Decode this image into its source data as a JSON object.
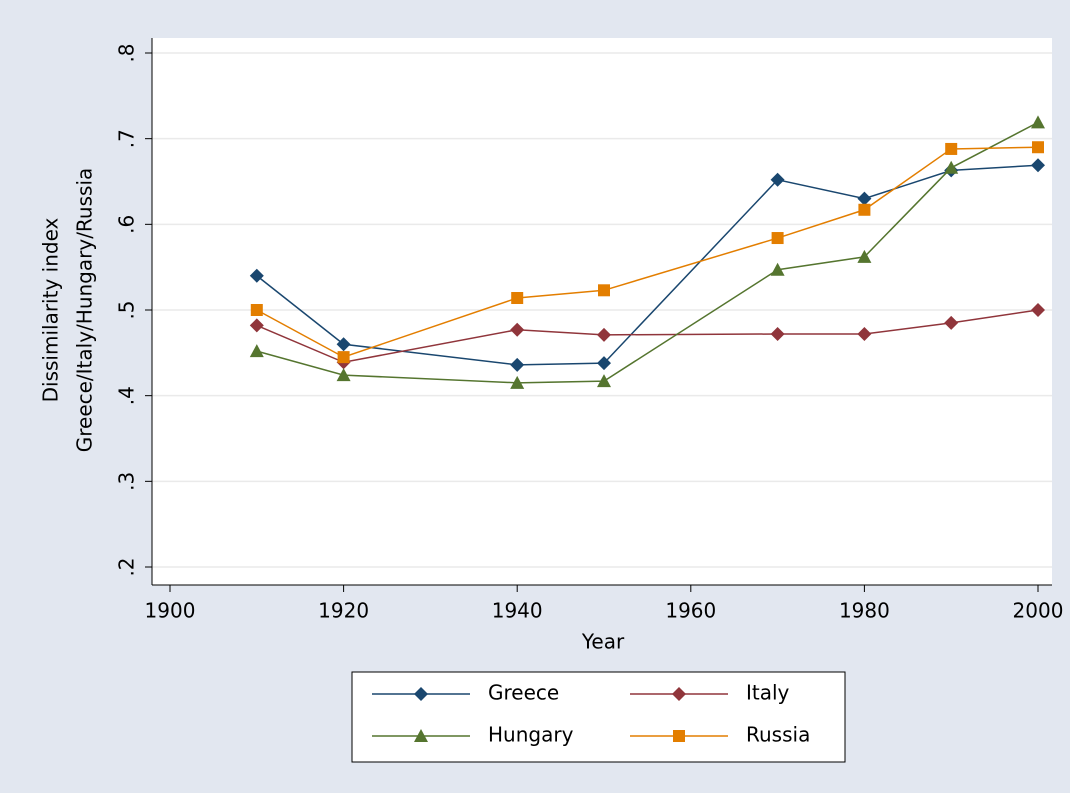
{
  "chart_data": {
    "type": "line",
    "xlabel": "Year",
    "ylabel_lines": [
      "Dissimilarity index",
      "Greece/Italy/Hungary/Russia"
    ],
    "x": [
      1910,
      1920,
      1940,
      1950,
      1970,
      1980,
      1990,
      2000
    ],
    "series": [
      {
        "name": "Greece",
        "color": "#1a476f",
        "marker": "diamond",
        "values": [
          0.54,
          0.46,
          0.436,
          0.438,
          0.652,
          0.63,
          0.663,
          0.669
        ]
      },
      {
        "name": "Italy",
        "color": "#90353b",
        "marker": "diamond",
        "values": [
          0.482,
          0.439,
          0.477,
          0.471,
          0.472,
          0.472,
          0.485,
          0.5
        ]
      },
      {
        "name": "Hungary",
        "color": "#55752f",
        "marker": "triangle",
        "values": [
          0.452,
          0.424,
          0.415,
          0.417,
          0.547,
          0.562,
          0.666,
          0.719
        ]
      },
      {
        "name": "Russia",
        "color": "#e37e00",
        "marker": "square",
        "values": [
          0.5,
          0.445,
          0.514,
          0.523,
          0.584,
          0.617,
          0.688,
          0.69
        ]
      }
    ],
    "xlim": [
      1900,
      2000
    ],
    "xticks": [
      1900,
      1920,
      1940,
      1960,
      1980,
      2000
    ],
    "ylim": [
      0.2,
      0.8
    ],
    "yticks": [
      {
        "value": 0.2,
        "label": ".2"
      },
      {
        "value": 0.3,
        "label": ".3"
      },
      {
        "value": 0.4,
        "label": ".4"
      },
      {
        "value": 0.5,
        "label": ".5"
      },
      {
        "value": 0.6,
        "label": ".6"
      },
      {
        "value": 0.7,
        "label": ".7"
      },
      {
        "value": 0.8,
        "label": ".8"
      }
    ],
    "grid": true,
    "legend": "bottom"
  }
}
